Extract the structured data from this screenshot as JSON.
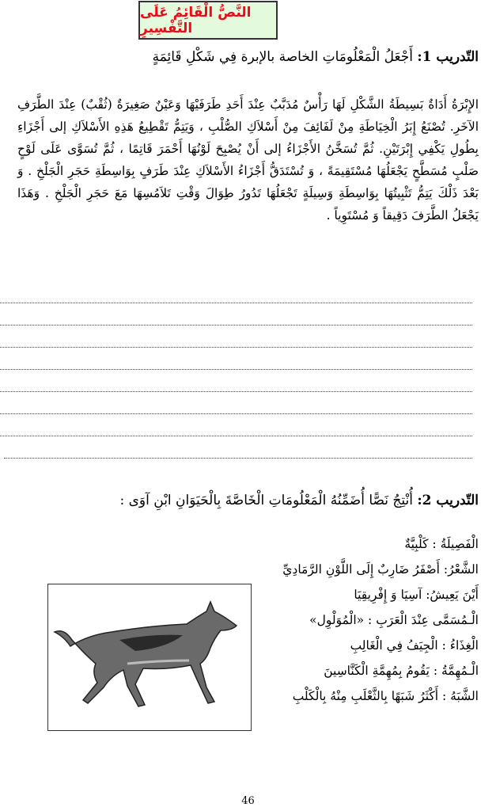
{
  "title": "النَّصُّ الْقَائِمُ عَلَى التَّفْسِيرِ",
  "exercise1": {
    "label": "التّدريب 1:",
    "instruction": "أَجْعَلُ الْمَعْلُومَاتِ الخاصة بالإبرة   فِي شَكْلِ قَائِمَةٍ",
    "text": "الإِبْرَةُ أَدَاةٌ بَسِيطَةُ الشَّكْلِ لَهَا رَأْسٌ مُدَبَّبٌ عِنْدَ أَحَدِ طَرَفَيْهَا وَعَيْنٌ صَغِيرَةٌ (ثُقْبٌ) عِنْدَ الطَّرَفِ الآخَرِ. تُصْنَعُ إِبَرُ الْخِيَاطَةِ مِنْ لَفَائِفَ مِنْ أَسْلاَكِ الصُّلْبِ ، وَيَتِمُّ تَقْطِيعُ هَذِهِ الأَسْلاَكِ إلى أَجْزَاءِ بِطُولِ يَكْفِي إِبْرَتَيْنِ. ثُمَّ تُسَخَّنُ الأَجْزَاءُ إلى أَنْ يُصْبِحَ لَوْنُهَا أَحْمَرَ قَاتِمًا ، ثُمَّ تُسَوَّى عَلَى لَوْحٍ صَلْبٍ مُسَطَّحٍ يَجْعَلُهَا مُسْتَقِيمَةً ، وَ تُسْتَدَقُّ أَجْزَاءُ الأَسْلاَكِ عِنْدَ طَرَفٍ بِوَاسِطَةِ حَجَرِ الْجَلْخِ . وَ بَعْدَ ذَلْكَ يَتِمُّ تَثْبِيتُهَا بِوَاسِطَةِ وَسِيلَةٍ تَجْعَلُهَا تَدُورُ طِوَالَ وَقْتِ تَلاَمُسِهَا مَعَ حَجَرِ الْجَلْخِ . وَهَذَا يَجْعَلُ الطَّرَفَ دَقِيقاً وَ مُسْتَوِياً ."
  },
  "exercise2": {
    "label": "التّدريب 2:",
    "instruction": "أُنْتِجُ نَصًّا أُضَمِّنُهُ الْمَعْلُومَاتِ الْخَاصَّةَ بِالْحَيَوَانِ  ابْنِ آوَى :",
    "facts": [
      "الْفَصِيلَةُ : كَلْبِيَّةٌ",
      "الشَّعْرُ: أَصْفَرُ ضَارِبٌ إِلَى اللَّوْنِ الرَّمَادِيِّ",
      "أَيْنَ يَعِيشُ: آسِيَا وَ إِفْرِيقِيَا",
      "الْـمُسَمَّى عِنْدَ الْعَرَبِ : «الْمُوَلْوِل»",
      "الْغِذَاءُ : الْجِيَفُ فِي الْغَالِبِ",
      "الْـمُهِمَّةُ : يَقُومُ بِمُهِمَّةِ الْكَنَّاسِينَ",
      "الشَّبَهُ : أَكْثَرُ شَبَهًا بِالثَّعْلَبِ مِنْهُ بِالْكَلْبِ"
    ],
    "image_icon": "jackal-illustration"
  },
  "page_number": "46",
  "colors": {
    "title_text": "#ee0a1a",
    "title_bg": "#e4fadc"
  }
}
